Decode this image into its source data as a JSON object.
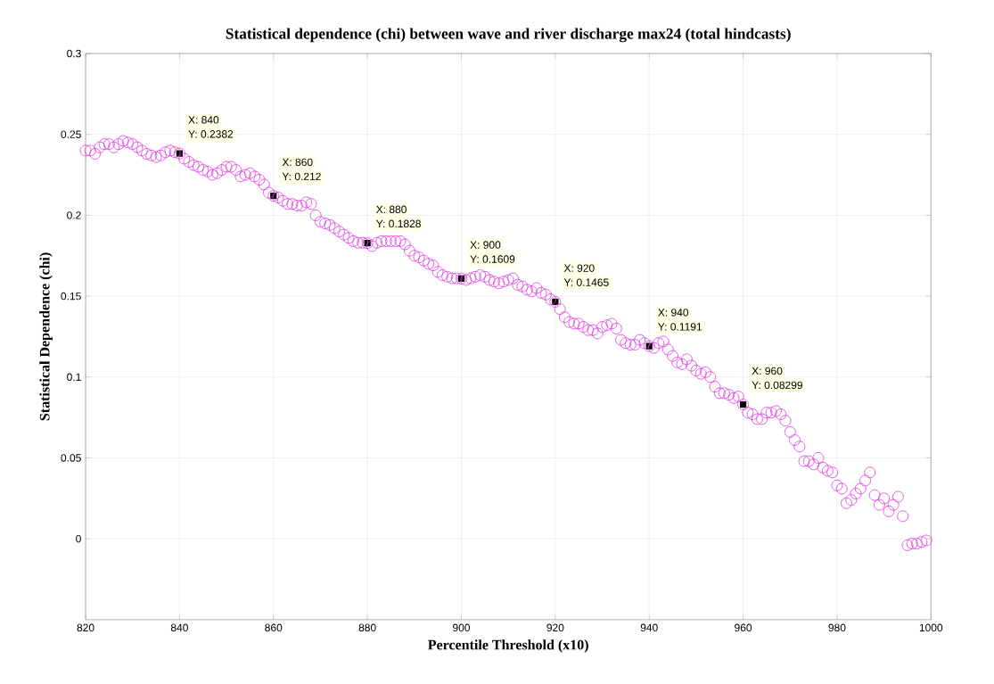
{
  "chart_data": {
    "type": "scatter",
    "title": "Statistical dependence (chi) between wave and river discharge max24 (total hindcasts)",
    "xlabel": "Percentile Threshold (x10)",
    "ylabel": "Statistical Dependence (chi)",
    "x": [
      820,
      821,
      822,
      823,
      824,
      825,
      826,
      827,
      828,
      829,
      830,
      831,
      832,
      833,
      834,
      835,
      836,
      837,
      838,
      839,
      840,
      841,
      842,
      843,
      844,
      845,
      846,
      847,
      848,
      849,
      850,
      851,
      852,
      853,
      854,
      855,
      856,
      857,
      858,
      859,
      860,
      861,
      862,
      863,
      864,
      865,
      866,
      867,
      868,
      869,
      870,
      871,
      872,
      873,
      874,
      875,
      876,
      877,
      878,
      879,
      880,
      881,
      882,
      883,
      884,
      885,
      886,
      887,
      888,
      889,
      890,
      891,
      892,
      893,
      894,
      895,
      896,
      897,
      898,
      899,
      900,
      901,
      902,
      903,
      904,
      905,
      906,
      907,
      908,
      909,
      910,
      911,
      912,
      913,
      914,
      915,
      916,
      917,
      918,
      919,
      920,
      921,
      922,
      923,
      924,
      925,
      926,
      927,
      928,
      929,
      930,
      931,
      932,
      933,
      934,
      935,
      936,
      937,
      938,
      939,
      940,
      941,
      942,
      943,
      944,
      945,
      946,
      947,
      948,
      949,
      950,
      951,
      952,
      953,
      954,
      955,
      956,
      957,
      958,
      959,
      960,
      961,
      962,
      963,
      964,
      965,
      966,
      967,
      968,
      969,
      970,
      971,
      972,
      973,
      974,
      975,
      976,
      977,
      978,
      979,
      980,
      981,
      982,
      983,
      984,
      985,
      986,
      987,
      988,
      989,
      990,
      991,
      992,
      993,
      994,
      995,
      996,
      997,
      998,
      999
    ],
    "series": [
      {
        "color": "#e033e0",
        "values": [
          0.24,
          0.24,
          0.238,
          0.242,
          0.244,
          0.244,
          0.242,
          0.244,
          0.246,
          0.245,
          0.244,
          0.242,
          0.24,
          0.238,
          0.237,
          0.236,
          0.237,
          0.239,
          0.24,
          0.239,
          0.2382,
          0.235,
          0.233,
          0.231,
          0.23,
          0.228,
          0.227,
          0.225,
          0.226,
          0.228,
          0.23,
          0.23,
          0.228,
          0.224,
          0.225,
          0.226,
          0.224,
          0.222,
          0.219,
          0.214,
          0.212,
          0.211,
          0.209,
          0.207,
          0.207,
          0.206,
          0.206,
          0.208,
          0.207,
          0.2,
          0.196,
          0.195,
          0.194,
          0.192,
          0.19,
          0.188,
          0.186,
          0.184,
          0.183,
          0.183,
          0.1828,
          0.181,
          0.183,
          0.184,
          0.184,
          0.184,
          0.184,
          0.184,
          0.182,
          0.178,
          0.175,
          0.174,
          0.172,
          0.17,
          0.169,
          0.165,
          0.163,
          0.162,
          0.161,
          0.161,
          0.1609,
          0.16,
          0.161,
          0.162,
          0.163,
          0.162,
          0.16,
          0.159,
          0.158,
          0.159,
          0.16,
          0.161,
          0.157,
          0.156,
          0.154,
          0.153,
          0.155,
          0.152,
          0.151,
          0.148,
          0.1465,
          0.142,
          0.137,
          0.134,
          0.133,
          0.133,
          0.131,
          0.129,
          0.129,
          0.127,
          0.131,
          0.132,
          0.133,
          0.13,
          0.123,
          0.121,
          0.12,
          0.12,
          0.123,
          0.121,
          0.1191,
          0.118,
          0.121,
          0.122,
          0.117,
          0.113,
          0.109,
          0.108,
          0.111,
          0.107,
          0.104,
          0.102,
          0.103,
          0.1,
          0.094,
          0.09,
          0.09,
          0.089,
          0.087,
          0.088,
          0.08299,
          0.078,
          0.077,
          0.074,
          0.074,
          0.078,
          0.078,
          0.079,
          0.077,
          0.073,
          0.066,
          0.061,
          0.057,
          0.048,
          0.048,
          0.046,
          0.05,
          0.044,
          0.042,
          0.041,
          0.033,
          0.031,
          0.022,
          0.024,
          0.028,
          0.031,
          0.036,
          0.041,
          0.027,
          0.021,
          0.025,
          0.017,
          0.021,
          0.026,
          0.014,
          -0.004,
          -0.003,
          -0.003,
          -0.002,
          -0.001
        ]
      }
    ],
    "marker": "circle",
    "grid": true,
    "xlim": [
      820,
      1000
    ],
    "xticks": [
      820,
      840,
      860,
      880,
      900,
      920,
      940,
      960,
      980,
      1000
    ],
    "ylim": [
      -0.05,
      0.3
    ],
    "yticks": [
      0,
      0.05,
      0.1,
      0.15,
      0.2,
      0.25,
      0.3
    ],
    "annotations": [
      {
        "text": "X: 840",
        "x": 840,
        "y": 0.2382
      },
      {
        "text": "Y: 0.2382",
        "x": 840,
        "y": 0.2382
      },
      {
        "text": "X: 860",
        "x": 860,
        "y": 0.212
      },
      {
        "text": "Y: 0.212",
        "x": 860,
        "y": 0.212
      },
      {
        "text": "X: 880",
        "x": 880,
        "y": 0.1828
      },
      {
        "text": "Y: 0.1828",
        "x": 880,
        "y": 0.1828
      },
      {
        "text": "X: 900",
        "x": 900,
        "y": 0.1609
      },
      {
        "text": "Y: 0.1609",
        "x": 900,
        "y": 0.1609
      },
      {
        "text": "X: 920",
        "x": 920,
        "y": 0.1465
      },
      {
        "text": "Y: 0.1465",
        "x": 920,
        "y": 0.1465
      },
      {
        "text": "X: 940",
        "x": 940,
        "y": 0.1191
      },
      {
        "text": "Y: 0.1191",
        "x": 940,
        "y": 0.1191
      },
      {
        "text": "X: 960",
        "x": 960,
        "y": 0.08299
      },
      {
        "text": "Y: 0.08299",
        "x": 960,
        "y": 0.08299
      }
    ]
  }
}
